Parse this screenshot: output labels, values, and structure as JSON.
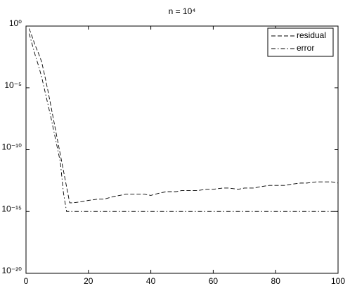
{
  "chart_data": {
    "type": "line",
    "title": "n = 10⁴",
    "y_scale": "log",
    "legend": "upper right",
    "xlim": [
      0,
      100
    ],
    "xticks": [
      0,
      20,
      40,
      60,
      80,
      100
    ],
    "ylim": [
      1e-20,
      1
    ],
    "yticks": [
      {
        "value": 1,
        "label": "10⁰"
      },
      {
        "value": 1e-05,
        "label": "10⁻⁵"
      },
      {
        "value": 1e-10,
        "label": "10⁻¹⁰"
      },
      {
        "value": 1e-15,
        "label": "10⁻¹⁵"
      },
      {
        "value": 1e-20,
        "label": "10⁻²⁰"
      }
    ],
    "x": [
      1,
      2,
      3,
      4,
      5,
      6,
      7,
      8,
      9,
      10,
      11,
      12,
      13,
      14,
      15,
      18,
      20,
      23,
      25,
      28,
      30,
      32,
      35,
      38,
      40,
      43,
      45,
      48,
      50,
      53,
      55,
      58,
      60,
      63,
      65,
      68,
      70,
      73,
      75,
      78,
      80,
      83,
      85,
      88,
      90,
      93,
      95,
      98,
      100
    ],
    "series": [
      {
        "name": "residual",
        "color": "#000000",
        "dash": "dashed",
        "values": [
          0.63,
          0.13,
          0.025,
          0.0063,
          0.0013,
          0.0001,
          6.3e-06,
          3.2e-07,
          1.6e-08,
          7.9e-10,
          4e-11,
          2e-12,
          1e-13,
          5e-15,
          5e-15,
          6.3e-15,
          7.9e-15,
          1e-14,
          1e-14,
          1.6e-14,
          2e-14,
          2.5e-14,
          2.5e-14,
          2.5e-14,
          2e-14,
          3.2e-14,
          4e-14,
          4e-14,
          5e-14,
          5e-14,
          5e-14,
          6.3e-14,
          6.3e-14,
          7.9e-14,
          7.9e-14,
          6.3e-14,
          7.9e-14,
          7.9e-14,
          1e-13,
          1.3e-13,
          1.3e-13,
          1.3e-13,
          1.6e-13,
          2e-13,
          2e-13,
          2.5e-13,
          2.5e-13,
          2.5e-13,
          2e-13
        ]
      },
      {
        "name": "error",
        "color": "#000000",
        "dash": "dashdot",
        "values": [
          0.25,
          0.032,
          0.004,
          0.00063,
          7.9e-05,
          6.3e-06,
          5e-07,
          4e-08,
          2.5e-09,
          1.6e-10,
          1e-11,
          3.2e-14,
          1e-15,
          1e-15,
          1e-15,
          1e-15,
          1e-15,
          1e-15,
          1e-15,
          1e-15,
          1e-15,
          1e-15,
          1e-15,
          1e-15,
          1e-15,
          1e-15,
          1e-15,
          1e-15,
          1e-15,
          1e-15,
          1e-15,
          1e-15,
          1e-15,
          1e-15,
          1e-15,
          1e-15,
          1e-15,
          1e-15,
          1e-15,
          1e-15,
          1e-15,
          1e-15,
          1e-15,
          1e-15,
          1e-15,
          1e-15,
          1e-15,
          1e-15,
          1e-15
        ]
      }
    ]
  }
}
